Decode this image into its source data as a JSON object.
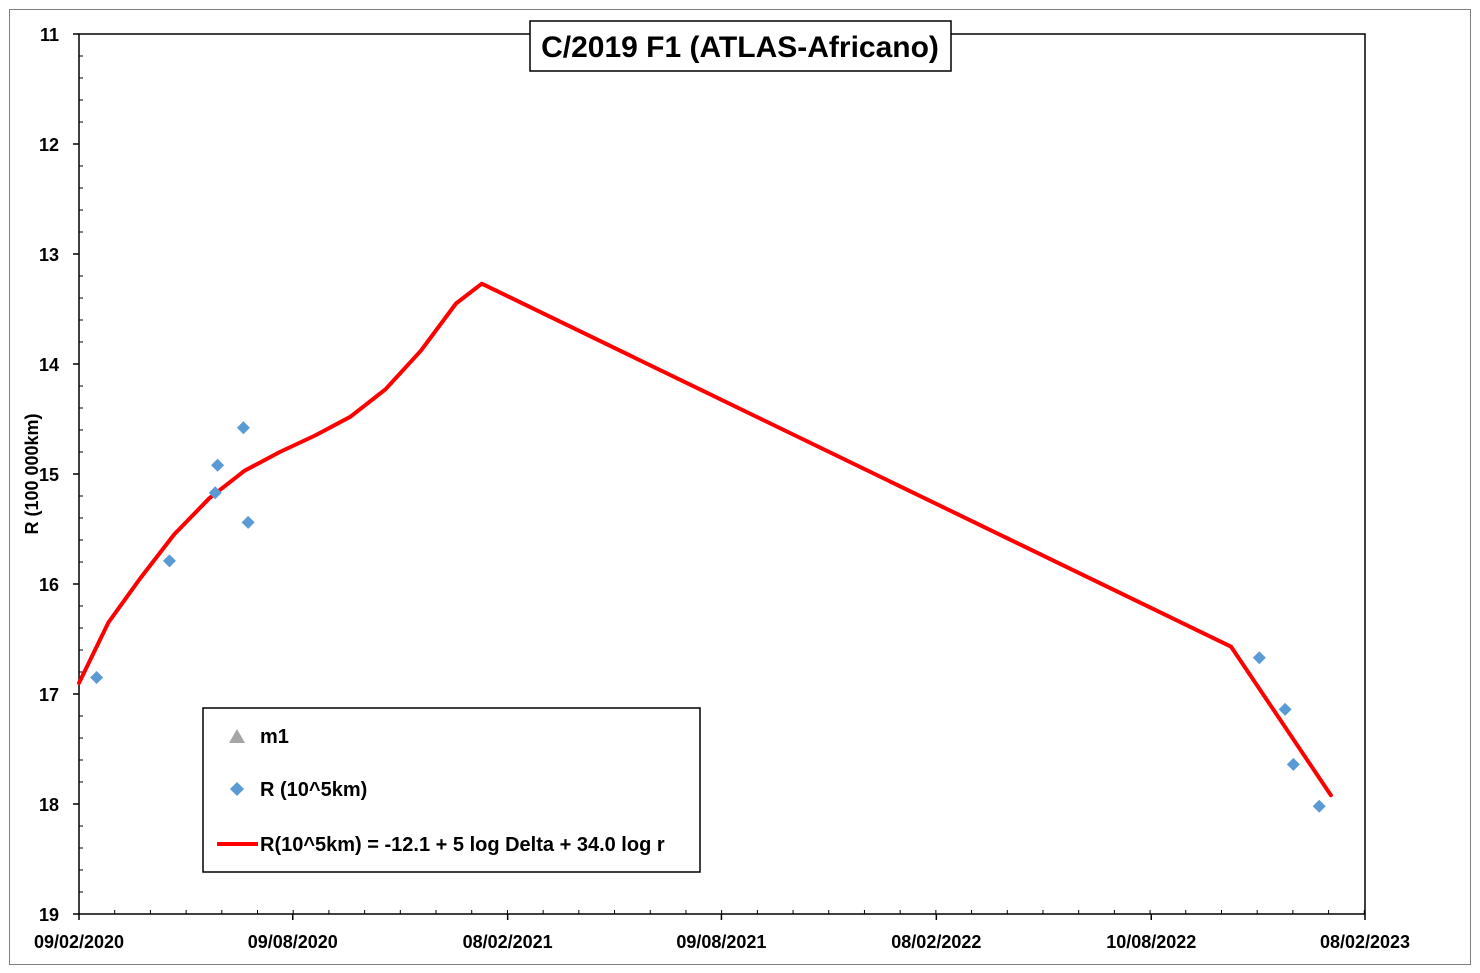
{
  "chart_data": {
    "type": "line",
    "title": "C/2019 F1 (ATLAS-Africano)",
    "xlabel": "",
    "ylabel": "R (100 000km)",
    "x_tick_labels": [
      "09/02/2020",
      "09/08/2020",
      "08/02/2021",
      "09/08/2021",
      "08/02/2022",
      "10/08/2022",
      "08/02/2023"
    ],
    "x_ticks": [
      "2020-02-09",
      "2020-08-09",
      "2021-02-08",
      "2021-08-09",
      "2022-02-08",
      "2022-08-10",
      "2023-02-08"
    ],
    "xlim": [
      "2020-02-09",
      "2023-02-08"
    ],
    "y_ticks": [
      11,
      12,
      13,
      14,
      15,
      16,
      17,
      18,
      19
    ],
    "ylim": [
      11,
      19
    ],
    "y_reversed": true,
    "grid": false,
    "legend_position": "bottom-left",
    "series": [
      {
        "name": "m1",
        "marker": "triangle",
        "color": "#a5a5a5",
        "points": []
      },
      {
        "name": "R (10^5km)",
        "marker": "diamond",
        "color": "#5b9bd5",
        "points": [
          {
            "x": "2020-02-24",
            "y": 16.85
          },
          {
            "x": "2020-04-26",
            "y": 15.79
          },
          {
            "x": "2020-06-04",
            "y": 15.17
          },
          {
            "x": "2020-06-06",
            "y": 14.92
          },
          {
            "x": "2020-06-28",
            "y": 14.58
          },
          {
            "x": "2020-07-02",
            "y": 15.44
          },
          {
            "x": "2022-11-10",
            "y": 16.67
          },
          {
            "x": "2022-12-02",
            "y": 17.14
          },
          {
            "x": "2022-12-09",
            "y": 17.64
          },
          {
            "x": "2022-12-31",
            "y": 18.02
          }
        ]
      },
      {
        "name": "R(10^5km) = -12.1 + 5 log Delta + 34.0 log r",
        "marker": "none",
        "color": "#ff0000",
        "points": [
          {
            "x": "2020-02-09",
            "y": 16.9
          },
          {
            "x": "2020-03-05",
            "y": 16.35
          },
          {
            "x": "2020-04-01",
            "y": 15.95
          },
          {
            "x": "2020-04-30",
            "y": 15.55
          },
          {
            "x": "2020-05-30",
            "y": 15.22
          },
          {
            "x": "2020-06-29",
            "y": 14.97
          },
          {
            "x": "2020-07-29",
            "y": 14.8
          },
          {
            "x": "2020-08-28",
            "y": 14.65
          },
          {
            "x": "2020-09-27",
            "y": 14.48
          },
          {
            "x": "2020-10-27",
            "y": 14.23
          },
          {
            "x": "2020-11-26",
            "y": 13.88
          },
          {
            "x": "2020-12-26",
            "y": 13.45
          },
          {
            "x": "2021-01-17",
            "y": 13.27
          },
          {
            "x": "2022-10-17",
            "y": 16.57
          },
          {
            "x": "2023-01-10",
            "y": 17.92
          }
        ]
      }
    ]
  }
}
